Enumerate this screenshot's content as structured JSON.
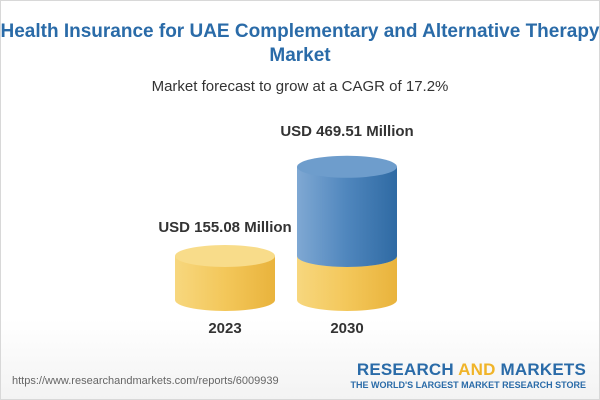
{
  "title": "Health Insurance for UAE Complementary and Alternative Therapy Market",
  "subtitle": "Market forecast to grow at a CAGR of 17.2%",
  "chart_data": {
    "type": "bar",
    "categories": [
      "2023",
      "2030"
    ],
    "values": [
      155.08,
      469.51
    ],
    "value_labels": [
      "USD 155.08 Million",
      "USD 469.51 Million"
    ],
    "unit": "USD Million",
    "cagr": "17.2%"
  },
  "colors": {
    "base": "#f5c95a",
    "growth": "#5b8fc4",
    "title": "#2a6ba8"
  },
  "footer": {
    "url": "https://www.researchandmarkets.com/reports/6009939",
    "logo_part1": "RESEARCH ",
    "logo_part2": "AND",
    "logo_part3": " MARKETS",
    "tagline": "THE WORLD'S LARGEST MARKET RESEARCH STORE"
  }
}
